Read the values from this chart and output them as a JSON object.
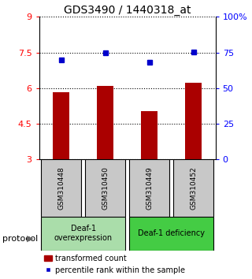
{
  "title": "GDS3490 / 1440318_at",
  "samples": [
    "GSM310448",
    "GSM310450",
    "GSM310449",
    "GSM310452"
  ],
  "bar_values": [
    5.82,
    6.08,
    5.02,
    6.22
  ],
  "dot_values": [
    70.0,
    75.0,
    68.0,
    75.5
  ],
  "ylim_left": [
    3,
    9
  ],
  "ylim_right": [
    0,
    100
  ],
  "yticks_left": [
    3,
    4.5,
    6,
    7.5,
    9
  ],
  "ytick_labels_left": [
    "3",
    "4.5",
    "6",
    "7.5",
    "9"
  ],
  "yticks_right": [
    0,
    25,
    50,
    75,
    100
  ],
  "ytick_labels_right": [
    "0",
    "25",
    "50",
    "75",
    "100%"
  ],
  "bar_color": "#aa0000",
  "dot_color": "#0000cc",
  "bar_bottom": 3.0,
  "groups": [
    {
      "label": "Deaf-1\noverexpression",
      "indices": [
        0,
        1
      ],
      "color": "#aaddaa"
    },
    {
      "label": "Deaf-1 deficiency",
      "indices": [
        2,
        3
      ],
      "color": "#44cc44"
    }
  ],
  "protocol_label": "protocol",
  "legend_bar_label": "transformed count",
  "legend_dot_label": "percentile rank within the sample",
  "background_color": "#ffffff",
  "grid_color": "#000000"
}
